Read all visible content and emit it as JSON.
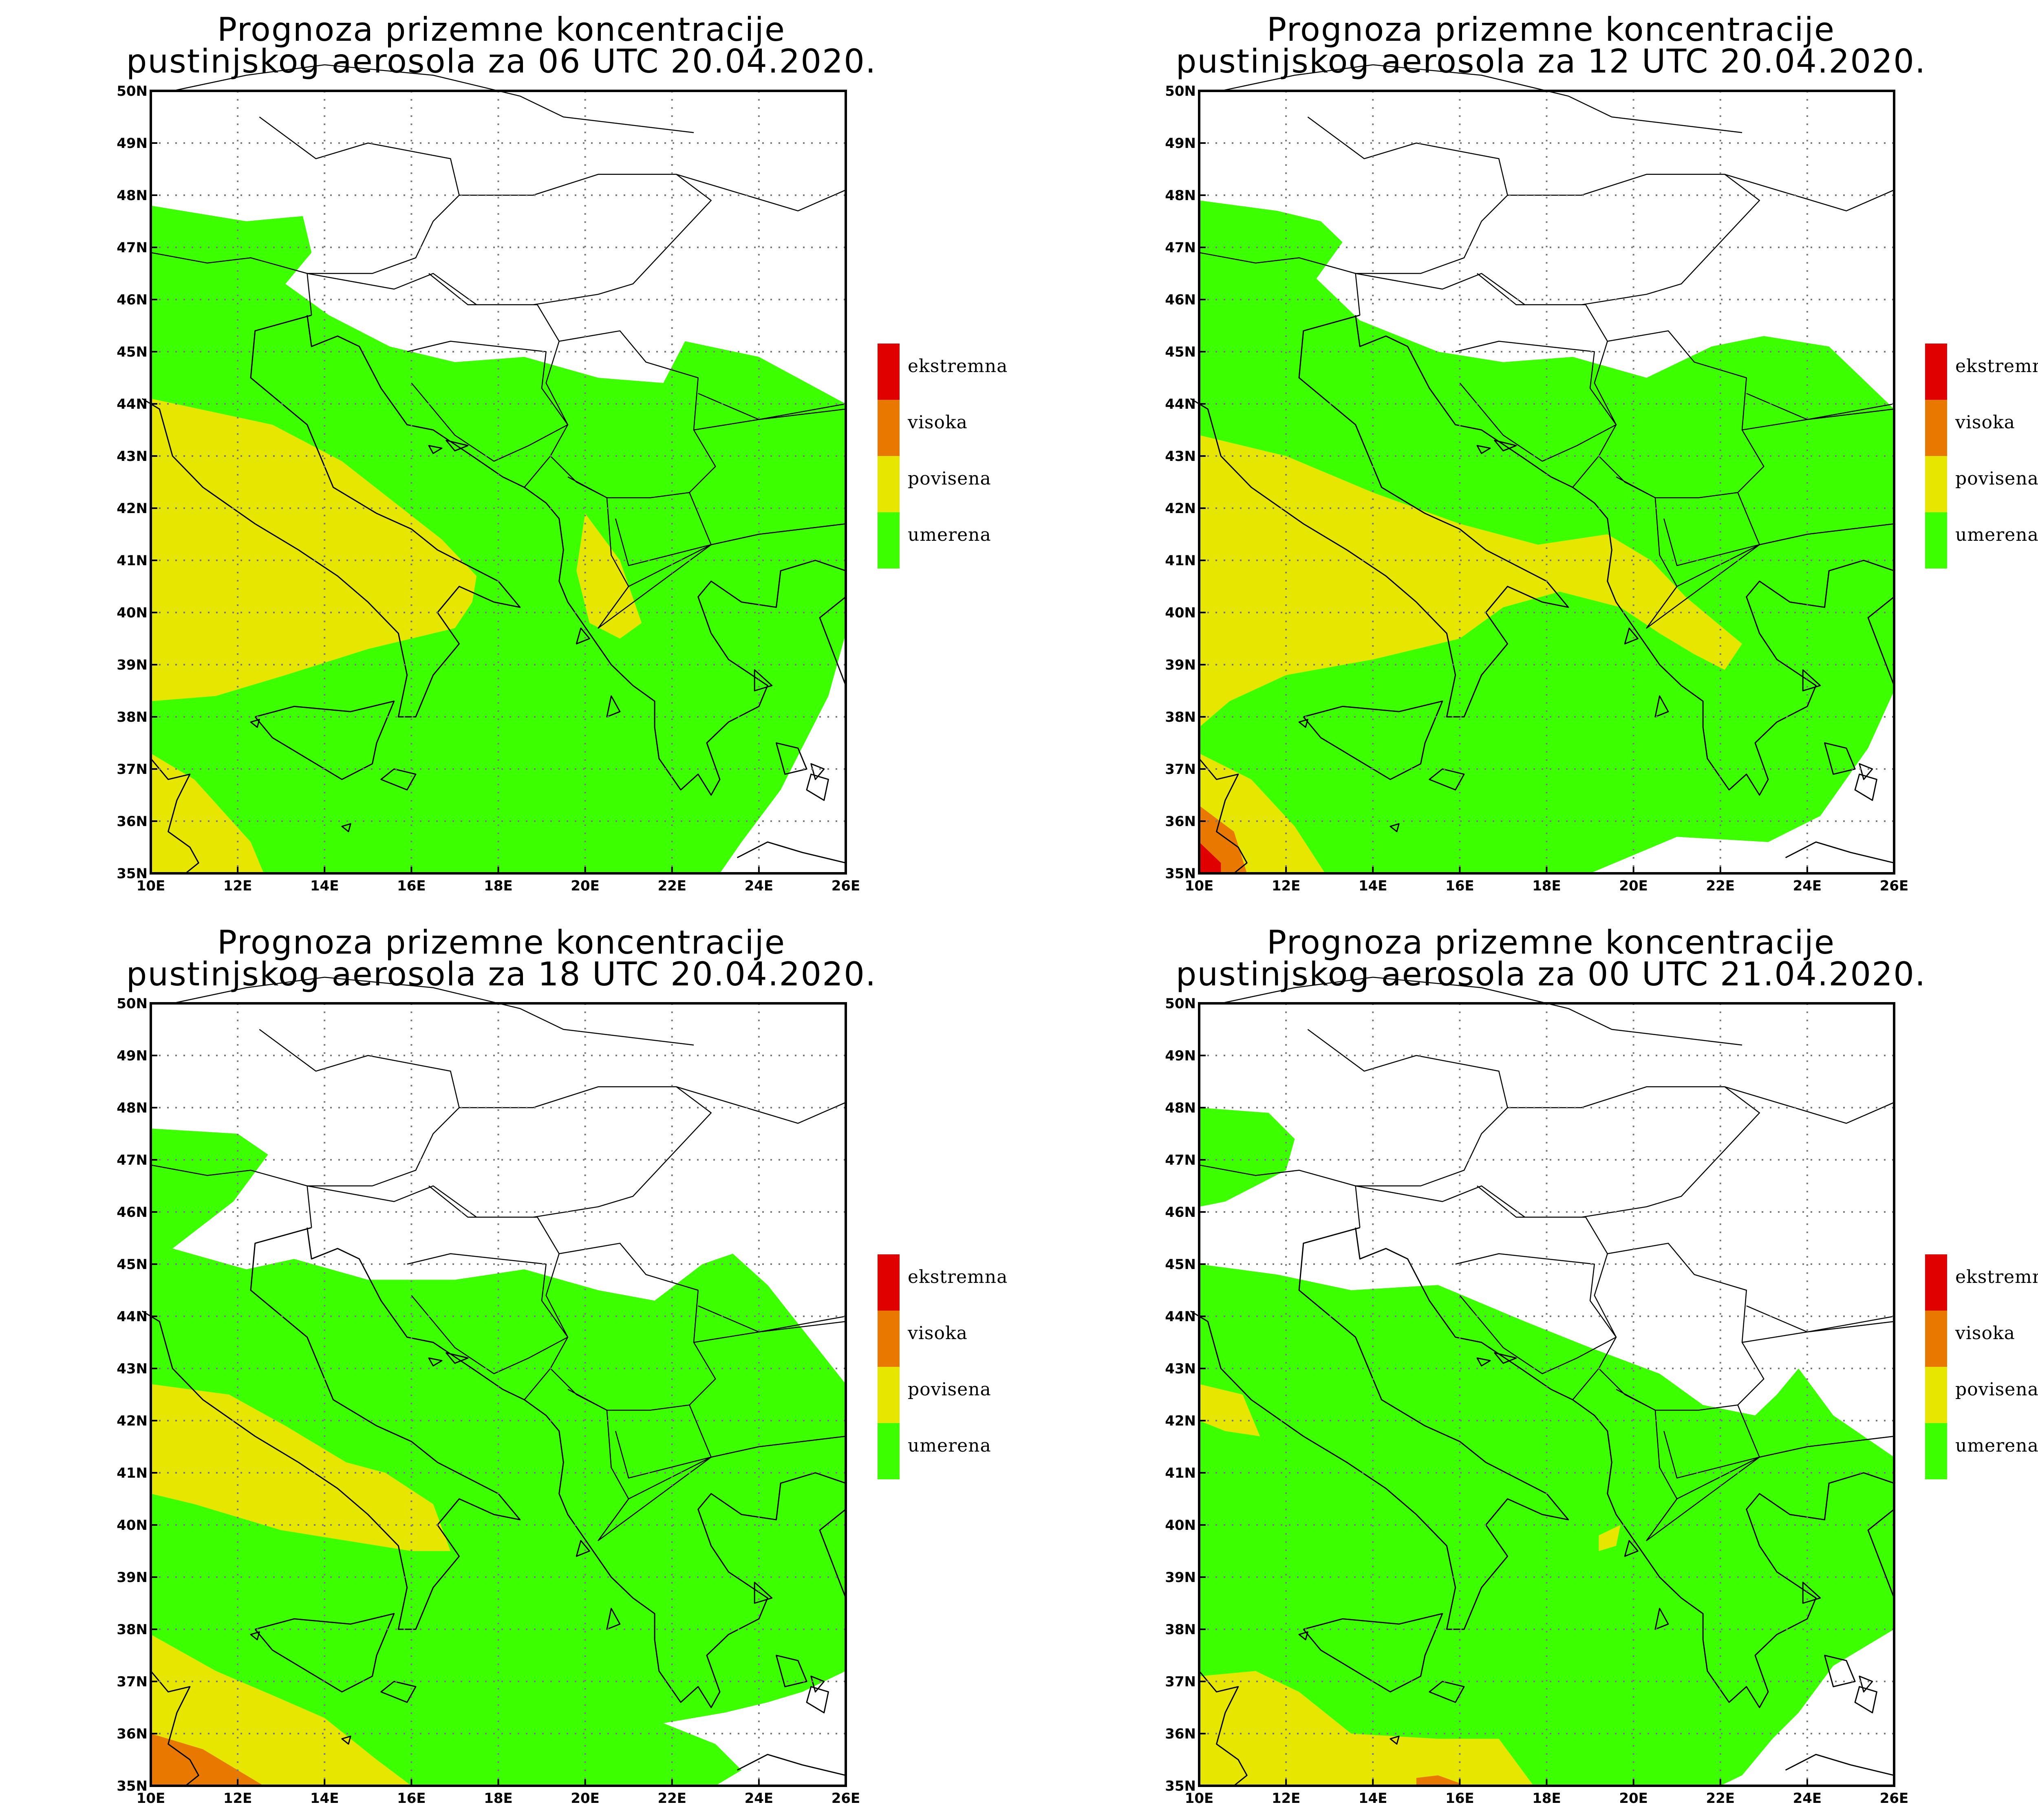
{
  "legend": [
    {
      "key": "ekstremna",
      "label": "ekstremna",
      "color": "#e00000"
    },
    {
      "key": "visoka",
      "label": "visoka",
      "color": "#e87800"
    },
    {
      "key": "povisena",
      "label": "povisena",
      "color": "#e6e600"
    },
    {
      "key": "umerena",
      "label": "umerena",
      "color": "#3cff00"
    }
  ],
  "axes": {
    "lon_labels": [
      "10E",
      "12E",
      "14E",
      "16E",
      "18E",
      "20E",
      "22E",
      "24E",
      "26E"
    ],
    "lat_labels": [
      "35N",
      "36N",
      "37N",
      "38N",
      "39N",
      "40N",
      "41N",
      "42N",
      "43N",
      "44N",
      "45N",
      "46N",
      "47N",
      "48N",
      "49N",
      "50N"
    ],
    "lon_range": [
      10,
      26
    ],
    "lat_range": [
      35,
      50
    ]
  },
  "panels": [
    {
      "title_line1": "Prognoza prizemne koncentracije",
      "title_line2": "pustinjskog aerosola za 06 UTC 20.04.2020.",
      "zones": {
        "umerena": [
          [
            10,
            47.8
          ],
          [
            12.2,
            47.5
          ],
          [
            13.5,
            47.6
          ],
          [
            13.7,
            46.9
          ],
          [
            13.1,
            46.3
          ],
          [
            14.1,
            45.7
          ],
          [
            15.5,
            45.1
          ],
          [
            17.0,
            44.8
          ],
          [
            18.6,
            44.9
          ],
          [
            20.3,
            44.5
          ],
          [
            21.8,
            44.4
          ],
          [
            22.3,
            45.2
          ],
          [
            24.0,
            44.9
          ],
          [
            26,
            44.0
          ],
          [
            26,
            39.6
          ],
          [
            25.6,
            38.4
          ],
          [
            24.5,
            36.6
          ],
          [
            23.6,
            35.6
          ],
          [
            23.1,
            35.0
          ],
          [
            10,
            35.0
          ]
        ],
        "povisena": [
          [
            10,
            44.1
          ],
          [
            12.8,
            43.6
          ],
          [
            14.4,
            42.9
          ],
          [
            16.7,
            41.4
          ],
          [
            17.5,
            40.7
          ],
          [
            17.4,
            40.2
          ],
          [
            17.0,
            39.7
          ],
          [
            15.0,
            39.3
          ],
          [
            13.1,
            38.8
          ],
          [
            11.5,
            38.4
          ],
          [
            10,
            38.3
          ]
        ],
        "povisena_2": [
          [
            20.0,
            41.9
          ],
          [
            20.8,
            41.0
          ],
          [
            21.3,
            39.8
          ],
          [
            20.8,
            39.5
          ],
          [
            20.1,
            39.8
          ],
          [
            19.8,
            40.8
          ]
        ],
        "povisena_3": [
          [
            10,
            37.3
          ],
          [
            11.0,
            36.8
          ],
          [
            12.3,
            35.6
          ],
          [
            12.6,
            35.0
          ],
          [
            10,
            35.0
          ]
        ]
      }
    },
    {
      "title_line1": "Prognoza prizemne koncentracije",
      "title_line2": "pustinjskog aerosola za 12 UTC 20.04.2020.",
      "zones": {
        "umerena": [
          [
            10,
            47.9
          ],
          [
            11.8,
            47.7
          ],
          [
            12.8,
            47.5
          ],
          [
            13.3,
            47.1
          ],
          [
            12.7,
            46.4
          ],
          [
            13.7,
            45.6
          ],
          [
            15.5,
            45.0
          ],
          [
            17.0,
            44.8
          ],
          [
            18.6,
            44.9
          ],
          [
            20.3,
            44.5
          ],
          [
            21.8,
            45.1
          ],
          [
            23.0,
            45.3
          ],
          [
            24.5,
            45.1
          ],
          [
            26,
            43.9
          ],
          [
            26,
            38.5
          ],
          [
            25.4,
            37.4
          ],
          [
            24.3,
            36.1
          ],
          [
            23.1,
            35.6
          ],
          [
            21.0,
            35.7
          ],
          [
            19.0,
            35.0
          ],
          [
            10,
            35.0
          ]
        ],
        "povisena": [
          [
            10,
            43.4
          ],
          [
            12.0,
            43.0
          ],
          [
            14.0,
            42.3
          ],
          [
            16.0,
            41.7
          ],
          [
            17.8,
            41.3
          ],
          [
            19.4,
            41.5
          ],
          [
            20.4,
            41.0
          ],
          [
            21.2,
            40.3
          ],
          [
            22.5,
            39.4
          ],
          [
            22.1,
            38.9
          ],
          [
            21.4,
            39.2
          ],
          [
            20.6,
            39.6
          ],
          [
            19.7,
            40.1
          ],
          [
            18.3,
            40.4
          ],
          [
            17.0,
            40.1
          ],
          [
            16.0,
            39.5
          ],
          [
            14.0,
            39.1
          ],
          [
            12.0,
            38.8
          ],
          [
            10.7,
            38.3
          ],
          [
            10,
            37.8
          ]
        ],
        "povisena_2": [
          [
            10,
            37.3
          ],
          [
            11.2,
            36.8
          ],
          [
            12.2,
            35.9
          ],
          [
            12.9,
            35.0
          ],
          [
            10,
            35.0
          ]
        ],
        "visoka": [
          [
            10,
            36.3
          ],
          [
            10.8,
            35.8
          ],
          [
            11.1,
            35.0
          ],
          [
            10,
            35.0
          ]
        ],
        "ekstremna": [
          [
            10,
            35.6
          ],
          [
            10.5,
            35.2
          ],
          [
            10.5,
            35.0
          ],
          [
            10,
            35.0
          ]
        ]
      }
    },
    {
      "title_line1": "Prognoza prizemne koncentracije",
      "title_line2": "pustinjskog aerosola za 18 UTC 20.04.2020.",
      "zones": {
        "umerena": [
          [
            10,
            47.6
          ],
          [
            12.0,
            47.5
          ],
          [
            12.7,
            47.1
          ],
          [
            11.9,
            46.2
          ],
          [
            10.5,
            45.3
          ],
          [
            12.2,
            44.9
          ],
          [
            13.3,
            45.1
          ],
          [
            15.0,
            44.7
          ],
          [
            17.0,
            44.7
          ],
          [
            18.6,
            44.9
          ],
          [
            20.3,
            44.5
          ],
          [
            21.6,
            44.3
          ],
          [
            22.7,
            45.0
          ],
          [
            23.4,
            45.2
          ],
          [
            24.2,
            44.6
          ],
          [
            26,
            42.7
          ],
          [
            26,
            37.2
          ],
          [
            25.0,
            36.8
          ],
          [
            24.2,
            36.6
          ],
          [
            23.2,
            36.4
          ],
          [
            21.8,
            36.2
          ],
          [
            23.0,
            35.8
          ],
          [
            23.6,
            35.3
          ],
          [
            23.0,
            35.0
          ],
          [
            10,
            35.0
          ]
        ],
        "povisena": [
          [
            10,
            42.7
          ],
          [
            11.8,
            42.5
          ],
          [
            13.1,
            41.9
          ],
          [
            14.5,
            41.2
          ],
          [
            15.4,
            41.0
          ],
          [
            16.5,
            40.4
          ],
          [
            16.9,
            39.5
          ],
          [
            16.0,
            39.5
          ],
          [
            14.5,
            39.7
          ],
          [
            13.0,
            39.9
          ],
          [
            11.0,
            40.4
          ],
          [
            10,
            40.6
          ]
        ],
        "povisena_2": [
          [
            10,
            37.9
          ],
          [
            11.5,
            37.2
          ],
          [
            12.9,
            36.7
          ],
          [
            14.0,
            36.3
          ],
          [
            15.2,
            35.5
          ],
          [
            16.0,
            35.0
          ],
          [
            10,
            35.0
          ]
        ],
        "visoka": [
          [
            10,
            36.0
          ],
          [
            11.2,
            35.7
          ],
          [
            12.0,
            35.3
          ],
          [
            12.6,
            35.0
          ],
          [
            10,
            35.0
          ]
        ]
      }
    },
    {
      "title_line1": "Prognoza prizemne koncentracije",
      "title_line2": "pustinjskog aerosola za 00 UTC 21.04.2020.",
      "zones": {
        "umerena": [
          [
            10,
            48.0
          ],
          [
            11.6,
            47.9
          ],
          [
            12.2,
            47.4
          ],
          [
            12.0,
            46.8
          ],
          [
            10.6,
            46.2
          ],
          [
            10,
            46.1
          ]
        ],
        "umerena_2": [
          [
            10,
            45.0
          ],
          [
            11.8,
            44.8
          ],
          [
            13.5,
            44.5
          ],
          [
            15.5,
            44.6
          ],
          [
            17.5,
            43.9
          ],
          [
            19.0,
            43.4
          ],
          [
            20.6,
            42.9
          ],
          [
            21.6,
            42.3
          ],
          [
            22.8,
            42.1
          ],
          [
            23.3,
            42.5
          ],
          [
            23.8,
            43.0
          ],
          [
            24.6,
            42.1
          ],
          [
            26,
            41.3
          ],
          [
            26,
            38.0
          ],
          [
            24.6,
            37.3
          ],
          [
            23.8,
            36.4
          ],
          [
            23.2,
            35.9
          ],
          [
            22.5,
            35.2
          ],
          [
            22.0,
            35.0
          ],
          [
            10,
            35.0
          ]
        ],
        "povisena": [
          [
            10,
            42.7
          ],
          [
            11.0,
            42.5
          ],
          [
            11.4,
            41.7
          ],
          [
            10.6,
            41.8
          ],
          [
            10,
            42.0
          ]
        ],
        "povisena_2": [
          [
            10,
            37.1
          ],
          [
            11.3,
            37.2
          ],
          [
            12.3,
            36.8
          ],
          [
            13.5,
            36.0
          ],
          [
            15.5,
            35.9
          ],
          [
            16.9,
            35.9
          ],
          [
            17.7,
            35.0
          ],
          [
            10,
            35.0
          ]
        ],
        "povisena_3": [
          [
            19.2,
            39.8
          ],
          [
            19.7,
            40.0
          ],
          [
            19.6,
            39.6
          ],
          [
            19.2,
            39.5
          ]
        ],
        "visoka": [
          [
            15.0,
            35.15
          ],
          [
            15.5,
            35.2
          ],
          [
            16.0,
            35.05
          ],
          [
            16.0,
            35.0
          ],
          [
            15.0,
            35.0
          ]
        ]
      }
    }
  ]
}
